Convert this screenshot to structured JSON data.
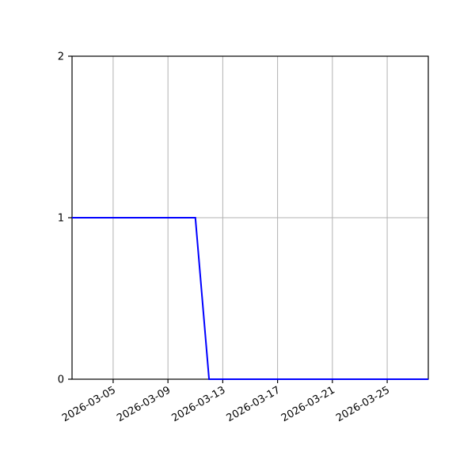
{
  "figure": {
    "background": "#ffffff"
  },
  "chart_data": {
    "type": "line",
    "title": "",
    "xlabel": "",
    "ylabel": "",
    "x": [
      "2026-03-02",
      "2026-03-03",
      "2026-03-04",
      "2026-03-05",
      "2026-03-06",
      "2026-03-07",
      "2026-03-08",
      "2026-03-09",
      "2026-03-10",
      "2026-03-11",
      "2026-03-12",
      "2026-03-13",
      "2026-03-14",
      "2026-03-15",
      "2026-03-16",
      "2026-03-17",
      "2026-03-18",
      "2026-03-19",
      "2026-03-20",
      "2026-03-21",
      "2026-03-22",
      "2026-03-23",
      "2026-03-24",
      "2026-03-25",
      "2026-03-26",
      "2026-03-27",
      "2026-03-28"
    ],
    "values": [
      1,
      1,
      1,
      1,
      1,
      1,
      1,
      1,
      1,
      1,
      0,
      0,
      0,
      0,
      0,
      0,
      0,
      0,
      0,
      0,
      0,
      0,
      0,
      0,
      0,
      0,
      0
    ],
    "xlim": [
      "2026-03-02",
      "2026-03-28"
    ],
    "ylim": [
      0,
      2
    ],
    "xticks": [
      "2026-03-05",
      "2026-03-09",
      "2026-03-13",
      "2026-03-17",
      "2026-03-21",
      "2026-03-25"
    ],
    "yticks": [
      "0",
      "1",
      "2"
    ],
    "xtick_rotation_deg": 30,
    "grid": true,
    "legend": null,
    "colors": {
      "line": "#0000ff",
      "grid": "#b2b2b2",
      "spine": "#000000",
      "tick_label": "#000000",
      "background": "#ffffff"
    }
  }
}
